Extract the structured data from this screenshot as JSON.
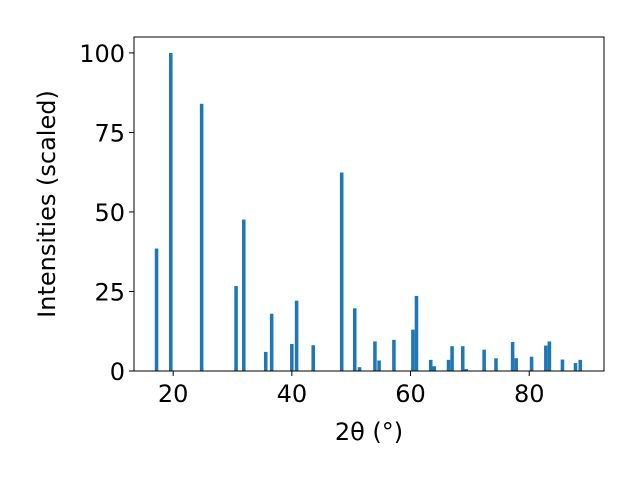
{
  "chart_data": {
    "type": "bar",
    "xlabel": "2θ (°)",
    "ylabel": "Intensities (scaled)",
    "xlim": [
      13.4,
      92.6
    ],
    "ylim": [
      0,
      105
    ],
    "xticks": [
      20,
      40,
      60,
      80
    ],
    "yticks": [
      0,
      25,
      50,
      75,
      100
    ],
    "bar_width": 0.6,
    "grid": false,
    "color": "#1f77b4",
    "x": [
      17.2,
      19.6,
      24.8,
      30.6,
      31.9,
      35.6,
      36.6,
      40.0,
      40.8,
      43.6,
      48.4,
      50.6,
      51.4,
      54.0,
      54.7,
      57.2,
      60.4,
      61.0,
      63.4,
      64.0,
      66.4,
      67.0,
      68.8,
      69.4,
      72.4,
      74.4,
      77.2,
      77.8,
      80.4,
      82.8,
      83.4,
      85.6,
      87.8,
      88.6
    ],
    "values": [
      38.5,
      100,
      84,
      26.7,
      47.6,
      6,
      18,
      8.5,
      22.1,
      8.1,
      62.4,
      19.7,
      1.2,
      9.3,
      3.3,
      9.8,
      13,
      23.6,
      3.5,
      1.5,
      3.5,
      7.8,
      7.8,
      0.6,
      6.7,
      4,
      9.1,
      4,
      4.5,
      8,
      9.3,
      3.6,
      2.5,
      3.5
    ]
  }
}
